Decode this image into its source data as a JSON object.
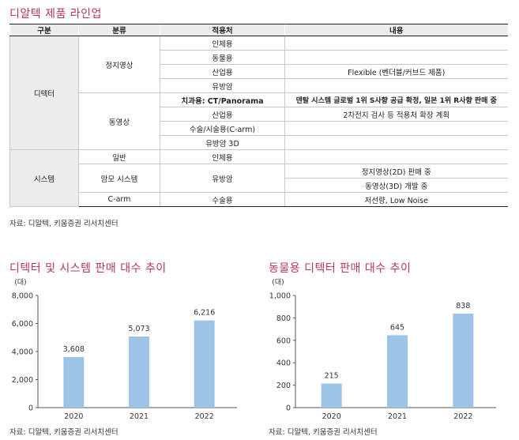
{
  "title": "디알텍 제품 라인업",
  "table": {
    "headers": [
      "구분",
      "분류",
      "적용처",
      "내용"
    ],
    "rows": [
      [
        "디텍터",
        "정지영상",
        "인체용",
        ""
      ],
      [
        "",
        "",
        "동물용",
        ""
      ],
      [
        "",
        "",
        "산업용",
        "Flexible (벤더블/커브드 제품)"
      ],
      [
        "",
        "",
        "유방암",
        ""
      ],
      [
        "",
        "동영상",
        "치과용: CT/Panorama",
        "덴탈 시스템 글로벌 1위 S사향 공급 확정, 일본 1위 R사향 판매 중"
      ],
      [
        "",
        "",
        "산업용",
        "2차전지 검사 등 적용처 확장 계획"
      ],
      [
        "",
        "",
        "수술/시술용(C-arm)",
        ""
      ],
      [
        "",
        "",
        "유방암 3D",
        ""
      ],
      [
        "시스템",
        "일반",
        "인체용",
        ""
      ],
      [
        "",
        "맘모 시스템",
        "유방암",
        "정지영상(2D) 판매 중"
      ],
      [
        "",
        "",
        "",
        "동영상(3D) 개발 중"
      ],
      [
        "",
        "C-arm",
        "수술용",
        "저선량, Low Noise"
      ]
    ]
  },
  "table_source": "자료: 디알텍, 키움증권 리서치센터",
  "chart_data": [
    {
      "type": "bar",
      "title": "디텍터 및 시스템 판매 대수 추이",
      "unit": "(대)",
      "categories": [
        "2020",
        "2021",
        "2022"
      ],
      "values": [
        3608,
        5073,
        6216
      ],
      "value_labels": [
        "3,608",
        "5,073",
        "6,216"
      ],
      "ylim": [
        0,
        8000
      ],
      "yticks": [
        "0",
        "2,000",
        "4,000",
        "6,000",
        "8,000"
      ],
      "bar_color": "#9dc3e6",
      "source": "자료: 디알텍, 키움증권 리서치센터"
    },
    {
      "type": "bar",
      "title": "동물용 디텍터 판매 대수 추이",
      "unit": "(대)",
      "categories": [
        "2020",
        "2021",
        "2022"
      ],
      "values": [
        215,
        645,
        838
      ],
      "value_labels": [
        "215",
        "645",
        "838"
      ],
      "ylim": [
        0,
        1000
      ],
      "yticks": [
        "0",
        "200",
        "400",
        "600",
        "800",
        "1,000"
      ],
      "bar_color": "#9dc3e6",
      "source": "자료: 디알텍, 키움증권 리서치센터"
    }
  ]
}
